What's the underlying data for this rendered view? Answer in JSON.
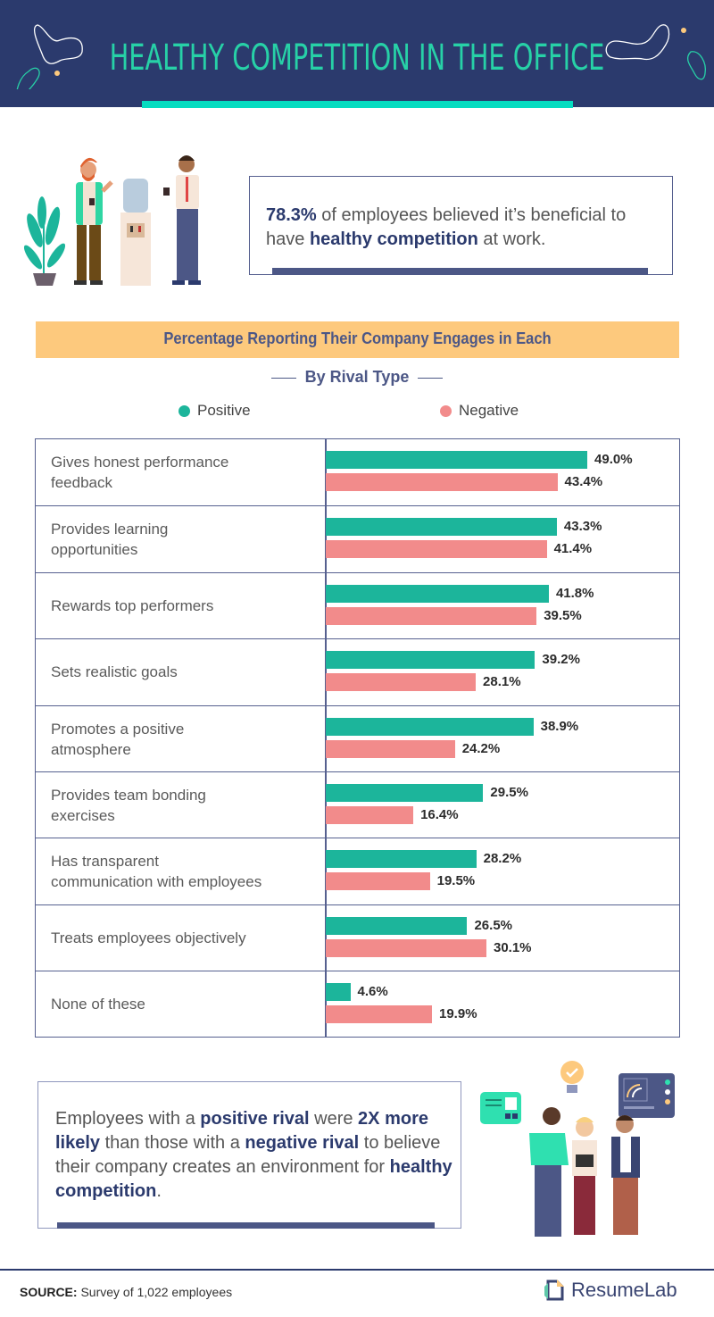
{
  "header": {
    "title": "HEALTHY COMPETITION IN THE OFFICE",
    "colors": {
      "background": "#2b3a6d",
      "title": "#27d1a7",
      "underline": "#06dcc0"
    }
  },
  "stat_callout": {
    "highlight": "78.3%",
    "text_1": " of employees believed it’s beneficial to have ",
    "emphasis": "healthy competition",
    "text_2": " at work."
  },
  "chart_data": {
    "type": "bar",
    "orientation": "horizontal",
    "title": "Percentage Reporting Their Company Engages in Each",
    "subtitle": "By Rival Type",
    "xlabel": "",
    "ylabel": "",
    "xlim": [
      0,
      60
    ],
    "grid": false,
    "legend_position": "top",
    "categories": [
      "Gives honest performance feedback",
      "Provides learning opportunities",
      "Rewards top performers",
      "Sets realistic goals",
      "Promotes a positive atmosphere",
      "Provides team bonding exercises",
      "Has transparent communication with employees",
      "Treats employees objectively",
      "None of these"
    ],
    "category_labels_wrapped": [
      [
        "Gives honest performance",
        "feedback"
      ],
      [
        "Provides learning",
        "opportunities"
      ],
      [
        "Rewards top performers"
      ],
      [
        "Sets realistic goals"
      ],
      [
        "Promotes a positive",
        "atmosphere"
      ],
      [
        "Provides team bonding",
        "exercises"
      ],
      [
        "Has transparent",
        "communication with employees"
      ],
      [
        "Treats employees objectively"
      ],
      [
        "None of these"
      ]
    ],
    "series": [
      {
        "name": "Positive",
        "color": "#1cb59b",
        "values": [
          49.0,
          43.3,
          41.8,
          39.2,
          38.9,
          29.5,
          28.2,
          26.5,
          4.6
        ],
        "labels": [
          "49.0%",
          "43.3%",
          "41.8%",
          "39.2%",
          "38.9%",
          "29.5%",
          "28.2%",
          "26.5%",
          "4.6%"
        ]
      },
      {
        "name": "Negative",
        "color": "#f28b8b",
        "values": [
          43.4,
          41.4,
          39.5,
          28.1,
          24.2,
          16.4,
          19.5,
          30.1,
          19.9
        ],
        "labels": [
          "43.4%",
          "41.4%",
          "39.5%",
          "28.1%",
          "24.2%",
          "16.4%",
          "19.5%",
          "30.1%",
          "19.9%"
        ]
      }
    ]
  },
  "note": {
    "p1": "Employees with a ",
    "b1": "positive rival",
    "p2": " were ",
    "b2": "2X more likely",
    "p3": " than those with a ",
    "b3": "negative rival",
    "p4": " to believe their company creates an environment for ",
    "b4": "healthy competition",
    "p5": "."
  },
  "footer": {
    "source_label": "SOURCE:",
    "source_text": " Survey of 1,022 employees",
    "brand": "ResumeLab",
    "brand_icon": "resumelab-logo-icon"
  },
  "illustrations": {
    "top": "office-water-cooler-illustration",
    "bottom": "team-discussion-illustration"
  }
}
